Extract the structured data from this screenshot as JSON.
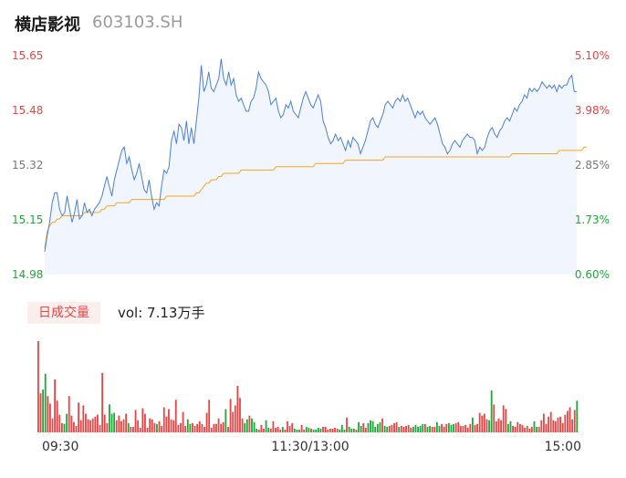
{
  "header": {
    "name": "横店影视",
    "code": "603103.SH"
  },
  "volume_panel": {
    "badge": "日成交量",
    "vol_text": "vol: 7.13万手"
  },
  "colors": {
    "price_line": "#4a7fe0",
    "avg_line": "#f5a623",
    "up": "#e84545",
    "down": "#1fa83a",
    "neutral": "#777777",
    "area": "#f1f5fd"
  },
  "chart_data": [
    {
      "type": "line",
      "y_left_labels": [
        "15.65",
        "15.48",
        "15.32",
        "15.15",
        "14.98"
      ],
      "y_right_labels": [
        "5.10%",
        "3.98%",
        "2.85%",
        "1.73%",
        "0.60%"
      ],
      "ylim": [
        14.98,
        15.65
      ],
      "x_tick_labels": [
        "09:30",
        "11:30/13:00",
        "15:00"
      ],
      "series": [
        {
          "key": "price",
          "values": [
            15.05,
            15.1,
            15.14,
            15.2,
            15.23,
            15.23,
            15.18,
            15.16,
            15.17,
            15.22,
            15.18,
            15.14,
            15.17,
            15.21,
            15.15,
            15.16,
            15.2,
            15.17,
            15.18,
            15.16,
            15.18,
            15.19,
            15.2,
            15.22,
            15.25,
            15.28,
            15.25,
            15.22,
            15.27,
            15.3,
            15.33,
            15.36,
            15.37,
            15.32,
            15.34,
            15.3,
            15.27,
            15.29,
            15.32,
            15.28,
            15.24,
            15.23,
            15.27,
            15.22,
            15.18,
            15.2,
            15.19,
            15.25,
            15.3,
            15.29,
            15.31,
            15.39,
            15.42,
            15.38,
            15.44,
            15.43,
            15.39,
            15.45,
            15.38,
            15.43,
            15.38,
            15.45,
            15.52,
            15.62,
            15.54,
            15.56,
            15.6,
            15.55,
            15.54,
            15.56,
            15.58,
            15.64,
            15.58,
            15.56,
            15.6,
            15.56,
            15.58,
            15.53,
            15.51,
            15.52,
            15.5,
            15.48,
            15.48,
            15.51,
            15.52,
            15.55,
            15.6,
            15.58,
            15.57,
            15.56,
            15.54,
            15.5,
            15.51,
            15.52,
            15.48,
            15.46,
            15.47,
            15.5,
            15.49,
            15.51,
            15.48,
            15.47,
            15.46,
            15.49,
            15.52,
            15.54,
            15.52,
            15.5,
            15.49,
            15.51,
            15.53,
            15.51,
            15.45,
            15.43,
            15.4,
            15.38,
            15.39,
            15.41,
            15.39,
            15.4,
            15.38,
            15.36,
            15.39,
            15.37,
            15.4,
            15.39,
            15.38,
            15.35,
            15.37,
            15.39,
            15.42,
            15.45,
            15.46,
            15.44,
            15.43,
            15.45,
            15.47,
            15.5,
            15.51,
            15.5,
            15.49,
            15.51,
            15.52,
            15.51,
            15.53,
            15.51,
            15.52,
            15.5,
            15.48,
            15.46,
            15.48,
            15.47,
            15.48,
            15.46,
            15.45,
            15.44,
            15.45,
            15.46,
            15.44,
            15.41,
            15.38,
            15.37,
            15.35,
            15.36,
            15.38,
            15.39,
            15.38,
            15.37,
            15.39,
            15.4,
            15.41,
            15.4,
            15.4,
            15.39,
            15.35,
            15.37,
            15.36,
            15.37,
            15.4,
            15.42,
            15.43,
            15.41,
            15.4,
            15.42,
            15.43,
            15.45,
            15.46,
            15.45,
            15.47,
            15.49,
            15.48,
            15.5,
            15.51,
            15.53,
            15.52,
            15.55,
            15.54,
            15.55,
            15.54,
            15.55,
            15.57,
            15.56,
            15.55,
            15.56,
            15.55,
            15.56,
            15.54,
            15.56,
            15.55,
            15.56,
            15.56,
            15.58,
            15.59,
            15.54,
            15.54
          ]
        },
        {
          "key": "avg",
          "values": [
            15.06,
            15.11,
            15.13,
            15.14,
            15.14,
            15.15,
            15.15,
            15.16,
            15.16,
            15.16,
            15.16,
            15.16,
            15.16,
            15.16,
            15.16,
            15.16,
            15.17,
            15.17,
            15.17,
            15.17,
            15.17,
            15.17,
            15.17,
            15.18,
            15.18,
            15.19,
            15.19,
            15.19,
            15.19,
            15.2,
            15.2,
            15.2,
            15.2,
            15.2,
            15.2,
            15.21,
            15.21,
            15.21,
            15.21,
            15.21,
            15.21,
            15.21,
            15.21,
            15.21,
            15.21,
            15.21,
            15.21,
            15.21,
            15.21,
            15.22,
            15.22,
            15.22,
            15.22,
            15.22,
            15.22,
            15.22,
            15.22,
            15.22,
            15.22,
            15.22,
            15.22,
            15.23,
            15.23,
            15.24,
            15.25,
            15.26,
            15.26,
            15.27,
            15.27,
            15.27,
            15.28,
            15.28,
            15.29,
            15.29,
            15.29,
            15.29,
            15.29,
            15.29,
            15.29,
            15.3,
            15.3,
            15.3,
            15.3,
            15.3,
            15.3,
            15.3,
            15.3,
            15.3,
            15.3,
            15.3,
            15.3,
            15.3,
            15.3,
            15.31,
            15.31,
            15.31,
            15.31,
            15.31,
            15.31,
            15.31,
            15.31,
            15.31,
            15.31,
            15.31,
            15.31,
            15.31,
            15.31,
            15.31,
            15.31,
            15.32,
            15.32,
            15.32,
            15.32,
            15.32,
            15.32,
            15.32,
            15.32,
            15.32,
            15.32,
            15.32,
            15.32,
            15.33,
            15.33,
            15.33,
            15.33,
            15.33,
            15.33,
            15.33,
            15.33,
            15.33,
            15.33,
            15.33,
            15.33,
            15.33,
            15.33,
            15.33,
            15.33,
            15.34,
            15.34,
            15.34,
            15.34,
            15.34,
            15.34,
            15.34,
            15.34,
            15.34,
            15.34,
            15.34,
            15.34,
            15.34,
            15.34,
            15.34,
            15.34,
            15.34,
            15.34,
            15.34,
            15.34,
            15.34,
            15.34,
            15.34,
            15.34,
            15.34,
            15.34,
            15.34,
            15.34,
            15.34,
            15.34,
            15.34,
            15.34,
            15.34,
            15.34,
            15.34,
            15.34,
            15.34,
            15.34,
            15.34,
            15.34,
            15.34,
            15.34,
            15.34,
            15.34,
            15.34,
            15.34,
            15.34,
            15.34,
            15.34,
            15.34,
            15.34,
            15.35,
            15.35,
            15.35,
            15.35,
            15.35,
            15.35,
            15.35,
            15.35,
            15.35,
            15.35,
            15.35,
            15.35,
            15.35,
            15.35,
            15.35,
            15.35,
            15.35,
            15.35,
            15.35,
            15.36,
            15.36,
            15.36,
            15.36,
            15.36,
            15.36,
            15.36,
            15.36,
            15.36,
            15.36,
            15.37,
            15.37
          ]
        }
      ]
    },
    {
      "type": "bar",
      "note_units": "relative volume (0-1 of panel max)",
      "values": [
        0.98,
        0.42,
        0.46,
        0.63,
        0.39,
        0.31,
        0.15,
        0.57,
        0.34,
        0.19,
        0.1,
        0.09,
        0.2,
        0.39,
        0.18,
        0.11,
        0.07,
        0.32,
        0.13,
        0.29,
        0.2,
        0.14,
        0.13,
        0.15,
        0.17,
        0.19,
        0.08,
        0.64,
        0.19,
        0.1,
        0.3,
        0.2,
        0.21,
        0.13,
        0.18,
        0.12,
        0.14,
        0.2,
        0.1,
        0.06,
        0.06,
        0.24,
        0.13,
        0.05,
        0.26,
        0.2,
        0.05,
        0.15,
        0.14,
        0.1,
        0.09,
        0.12,
        0.07,
        0.27,
        0.17,
        0.25,
        0.14,
        0.13,
        0.35,
        0.08,
        0.1,
        0.22,
        0.07,
        0.14,
        0.09,
        0.1,
        0.07,
        0.09,
        0.12,
        0.09,
        0.06,
        0.21,
        0.35,
        0.05,
        0.09,
        0.09,
        0.15,
        0.09,
        0.11,
        0.25,
        0.06,
        0.36,
        0.22,
        0.29,
        0.5,
        0.37,
        0.15,
        0.1,
        0.14,
        0.18,
        0.15,
        0.11,
        0.04,
        0.03,
        0.08,
        0.04,
        0.13,
        0.05,
        0.04,
        0.12,
        0.05,
        0.06,
        0.03,
        0.06,
        0.03,
        0.12,
        0.07,
        0.1,
        0.04,
        0.03,
        0.03,
        0.08,
        0.03,
        0.06,
        0.05,
        0.04,
        0.03,
        0.03,
        0.05,
        0.04,
        0.06,
        0.06,
        0.03,
        0.04,
        0.04,
        0.05,
        0.04,
        0.03,
        0.08,
        0.03,
        0.16,
        0.06,
        0.04,
        0.04,
        0.03,
        0.11,
        0.07,
        0.1,
        0.05,
        0.1,
        0.13,
        0.12,
        0.06,
        0.09,
        0.11,
        0.15,
        0.07,
        0.06,
        0.07,
        0.08,
        0.1,
        0.11,
        0.06,
        0.07,
        0.06,
        0.07,
        0.08,
        0.05,
        0.06,
        0.08,
        0.06,
        0.07,
        0.09,
        0.09,
        0.06,
        0.07,
        0.06,
        0.06,
        0.11,
        0.07,
        0.09,
        0.06,
        0.09,
        0.1,
        0.08,
        0.09,
        0.1,
        0.11,
        0.07,
        0.07,
        0.08,
        0.05,
        0.09,
        0.16,
        0.08,
        0.09,
        0.21,
        0.18,
        0.2,
        0.14,
        0.13,
        0.45,
        0.3,
        0.12,
        0.15,
        0.13,
        0.29,
        0.25,
        0.09,
        0.12,
        0.07,
        0.06,
        0.11,
        0.09,
        0.08,
        0.05,
        0.07,
        0.04,
        0.06,
        0.12,
        0.06,
        0.06,
        0.13,
        0.2,
        0.09,
        0.17,
        0.22,
        0.13,
        0.12,
        0.16,
        0.17,
        0.1,
        0.19,
        0.23,
        0.27,
        0.14,
        0.24,
        0.34
      ],
      "directions": "uudduuuuuuudduuuuuuuuuuuuuuuuuddduuuuuduuuuuuuuuuuduuuuuuuuuuuudduuuuuuuuuuuuuuduuuuuuudduddduuudduuuuuduuuuddduuddudddduuuuuuudddudddudduuddddddudduuuuduuuuudddddudduudduuuddduuuuuuuduuuuuudduuuuuudduuuuuuuuudduuuuuuuuuuuuuuuudddduuuuduuuuuun"
    }
  ]
}
